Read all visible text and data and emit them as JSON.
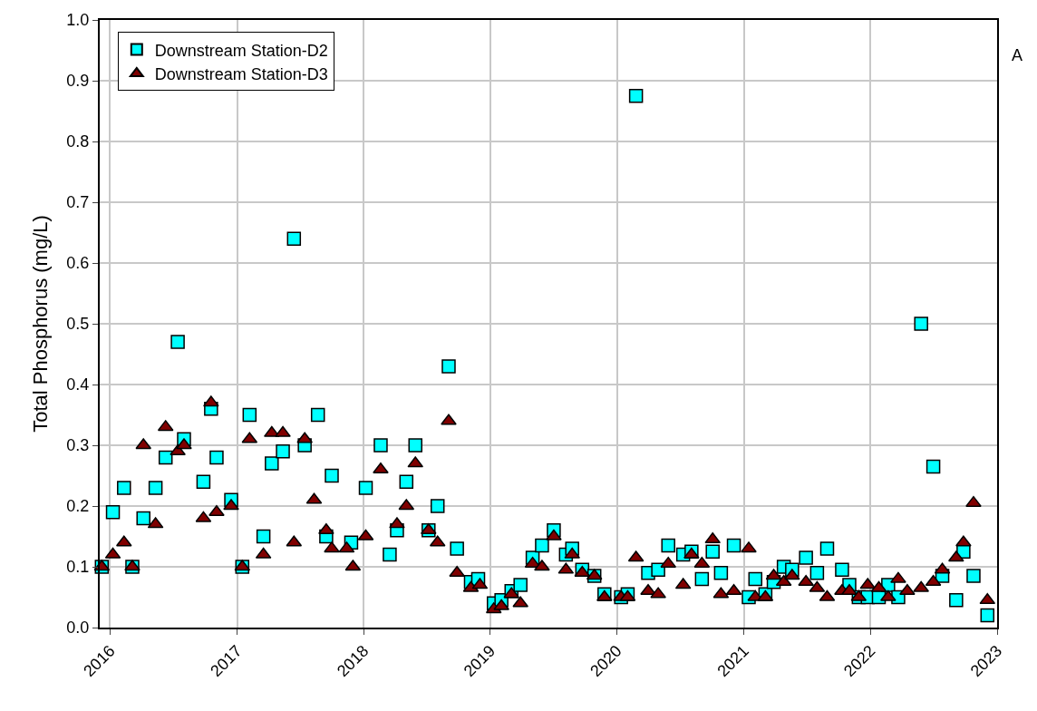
{
  "chart_data": {
    "type": "scatter",
    "ylabel": "Total Phosphorus (mg/L)",
    "annotations": [
      "A"
    ],
    "xlim": [
      "2015-12-02",
      "2023-01-01"
    ],
    "xticks": [
      {
        "value": "2016-01-01",
        "label": "2016"
      },
      {
        "value": "2017-01-01",
        "label": "2017"
      },
      {
        "value": "2018-01-01",
        "label": "2018"
      },
      {
        "value": "2019-01-01",
        "label": "2019"
      },
      {
        "value": "2020-01-01",
        "label": "2020"
      },
      {
        "value": "2021-01-01",
        "label": "2021"
      },
      {
        "value": "2022-01-01",
        "label": "2022"
      },
      {
        "value": "2023-01-01",
        "label": "2023"
      }
    ],
    "ylim": [
      0,
      1
    ],
    "yticks": [
      {
        "value": 0,
        "label": "0.0"
      },
      0.1,
      0.2,
      0.3,
      0.4,
      0.5,
      0.6,
      0.7,
      0.8,
      0.9,
      {
        "value": 1,
        "label": "1.0"
      }
    ],
    "grid": true,
    "legend": "top left",
    "series": [
      {
        "name": "Downstream Station-D2",
        "color": "#00ffff",
        "marker": "square",
        "x": [
          "2015-12-08",
          "2016-01-09",
          "2016-02-10",
          "2016-03-05",
          "2016-04-06",
          "2016-05-11",
          "2016-06-09",
          "2016-07-14",
          "2016-08-01",
          "2016-09-26",
          "2016-10-18",
          "2016-11-03",
          "2016-12-15",
          "2017-01-16",
          "2017-02-06",
          "2017-03-18",
          "2017-04-11",
          "2017-05-13",
          "2017-06-14",
          "2017-07-15",
          "2017-08-22",
          "2017-09-15",
          "2017-10-01",
          "2017-11-26",
          "2018-01-07",
          "2018-02-19",
          "2018-03-17",
          "2018-04-07",
          "2018-05-04",
          "2018-05-30",
          "2018-07-07",
          "2018-08-02",
          "2018-09-03",
          "2018-09-27",
          "2018-11-06",
          "2018-11-27",
          "2019-01-11",
          "2019-02-02",
          "2019-03-03",
          "2019-03-29",
          "2019-05-03",
          "2019-05-30",
          "2019-07-03",
          "2019-08-07",
          "2019-08-25",
          "2019-09-23",
          "2019-10-28",
          "2019-11-26",
          "2020-01-13",
          "2020-02-01",
          "2020-02-25",
          "2020-03-31",
          "2020-04-29",
          "2020-05-28",
          "2020-07-10",
          "2020-08-03",
          "2020-09-02",
          "2020-10-03",
          "2020-10-27",
          "2020-12-03",
          "2021-01-15",
          "2021-02-03",
          "2021-03-04",
          "2021-03-28",
          "2021-04-26",
          "2021-05-20",
          "2021-06-29",
          "2021-07-31",
          "2021-08-29",
          "2021-10-11",
          "2021-11-01",
          "2021-11-28",
          "2021-12-24",
          "2022-01-25",
          "2022-02-21",
          "2022-03-22",
          "2022-05-27",
          "2022-07-01",
          "2022-07-27",
          "2022-09-05",
          "2022-09-26",
          "2022-10-25",
          "2022-12-04"
        ],
        "values": [
          0.1,
          0.19,
          0.23,
          0.1,
          0.18,
          0.23,
          0.28,
          0.47,
          0.31,
          0.24,
          0.36,
          0.28,
          0.21,
          0.1,
          0.35,
          0.15,
          0.27,
          0.29,
          0.64,
          0.3,
          0.35,
          0.15,
          0.25,
          0.14,
          0.23,
          0.3,
          0.12,
          0.16,
          0.24,
          0.3,
          0.16,
          0.2,
          0.43,
          0.13,
          0.075,
          0.08,
          0.04,
          0.045,
          0.06,
          0.07,
          0.115,
          0.135,
          0.16,
          0.12,
          0.13,
          0.095,
          0.085,
          0.055,
          0.05,
          0.055,
          0.875,
          0.09,
          0.095,
          0.135,
          0.12,
          0.125,
          0.08,
          0.125,
          0.09,
          0.135,
          0.05,
          0.08,
          0.055,
          0.075,
          0.1,
          0.095,
          0.115,
          0.09,
          0.13,
          0.095,
          0.07,
          0.05,
          0.05,
          0.05,
          0.07,
          0.05,
          0.5,
          0.265,
          0.085,
          0.045,
          0.125,
          0.085,
          0.02
        ]
      },
      {
        "name": "Downstream Station-D3",
        "color": "#800000",
        "marker": "triangle",
        "x": [
          "2015-12-08",
          "2016-01-09",
          "2016-02-10",
          "2016-03-05",
          "2016-04-06",
          "2016-05-11",
          "2016-06-09",
          "2016-07-14",
          "2016-08-01",
          "2016-09-26",
          "2016-10-18",
          "2016-11-03",
          "2016-12-15",
          "2017-01-16",
          "2017-02-06",
          "2017-03-18",
          "2017-04-11",
          "2017-05-13",
          "2017-06-14",
          "2017-07-15",
          "2017-08-11",
          "2017-09-15",
          "2017-10-01",
          "2017-11-13",
          "2017-12-01",
          "2018-01-07",
          "2018-02-19",
          "2018-04-07",
          "2018-05-04",
          "2018-05-30",
          "2018-07-07",
          "2018-08-02",
          "2018-09-03",
          "2018-09-27",
          "2018-11-06",
          "2018-12-02",
          "2019-01-11",
          "2019-02-02",
          "2019-03-03",
          "2019-03-29",
          "2019-05-03",
          "2019-05-30",
          "2019-07-03",
          "2019-08-07",
          "2019-08-25",
          "2019-09-23",
          "2019-10-28",
          "2019-11-26",
          "2020-01-13",
          "2020-02-01",
          "2020-02-25",
          "2020-03-31",
          "2020-04-29",
          "2020-05-28",
          "2020-07-10",
          "2020-08-03",
          "2020-09-02",
          "2020-10-03",
          "2020-10-27",
          "2020-12-03",
          "2021-01-15",
          "2021-02-03",
          "2021-03-04",
          "2021-03-28",
          "2021-04-26",
          "2021-05-20",
          "2021-06-29",
          "2021-07-31",
          "2021-08-29",
          "2021-10-11",
          "2021-11-01",
          "2021-11-28",
          "2021-12-24",
          "2022-01-25",
          "2022-02-21",
          "2022-03-22",
          "2022-04-17",
          "2022-05-27",
          "2022-07-01",
          "2022-07-27",
          "2022-09-05",
          "2022-09-26",
          "2022-10-25",
          "2022-12-04"
        ],
        "values": [
          0.1,
          0.12,
          0.14,
          0.1,
          0.3,
          0.17,
          0.33,
          0.29,
          0.3,
          0.18,
          0.37,
          0.19,
          0.2,
          0.1,
          0.31,
          0.12,
          0.32,
          0.32,
          0.14,
          0.31,
          0.21,
          0.16,
          0.13,
          0.13,
          0.1,
          0.15,
          0.26,
          0.17,
          0.2,
          0.27,
          0.16,
          0.14,
          0.34,
          0.09,
          0.065,
          0.07,
          0.03,
          0.035,
          0.055,
          0.04,
          0.105,
          0.1,
          0.15,
          0.095,
          0.12,
          0.09,
          0.085,
          0.05,
          0.05,
          0.05,
          0.115,
          0.06,
          0.055,
          0.105,
          0.07,
          0.12,
          0.105,
          0.145,
          0.055,
          0.06,
          0.13,
          0.05,
          0.05,
          0.085,
          0.075,
          0.085,
          0.075,
          0.065,
          0.05,
          0.06,
          0.06,
          0.05,
          0.07,
          0.065,
          0.05,
          0.08,
          0.06,
          0.065,
          0.075,
          0.095,
          0.115,
          0.14,
          0.205,
          0.045
        ]
      }
    ]
  }
}
